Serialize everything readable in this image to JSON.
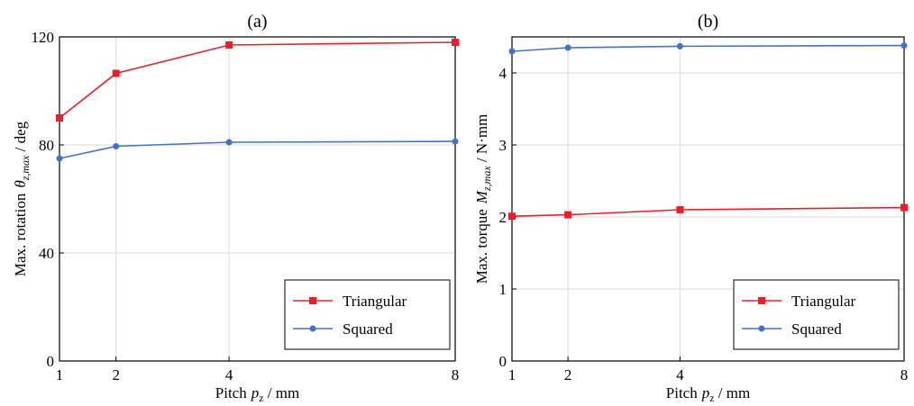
{
  "chart_data": [
    {
      "type": "line",
      "title": "(a)",
      "xlabel": "Pitch",
      "xlabel_var": "p",
      "xlabel_sub": "z",
      "xlabel_unit": " / mm",
      "ylabel": "Max. rotation",
      "ylabel_var": "θ",
      "ylabel_sub": "z,max",
      "ylabel_unit": " / deg",
      "xlim": [
        1,
        8
      ],
      "ylim": [
        0,
        120
      ],
      "xticks": [
        1,
        2,
        4,
        8
      ],
      "xtick_labels": [
        "1",
        "2",
        "4",
        "8"
      ],
      "yticks": [
        0,
        40,
        80,
        120
      ],
      "ytick_labels": [
        "0",
        "40",
        "80",
        "120"
      ],
      "grid": true,
      "legend_position": "bottom-right",
      "x": [
        1,
        2,
        4,
        8
      ],
      "series": [
        {
          "name": "Triangular",
          "values": [
            90,
            106.5,
            117,
            118
          ],
          "color": "#e8202a",
          "marker": "square"
        },
        {
          "name": "Squared",
          "values": [
            75,
            79.5,
            81,
            81.3
          ],
          "color": "#4472c4",
          "marker": "circle"
        }
      ]
    },
    {
      "type": "line",
      "title": "(b)",
      "xlabel": "Pitch",
      "xlabel_var": "p",
      "xlabel_sub": "z",
      "xlabel_unit": " / mm",
      "ylabel": "Max. torque",
      "ylabel_var": "M",
      "ylabel_sub": "z,max",
      "ylabel_unit": " / N·mm",
      "xlim": [
        1,
        8
      ],
      "ylim": [
        0,
        4.5
      ],
      "xticks": [
        1,
        2,
        4,
        8
      ],
      "xtick_labels": [
        "1",
        "2",
        "4",
        "8"
      ],
      "yticks": [
        0,
        1,
        2,
        3,
        4
      ],
      "ytick_labels": [
        "0",
        "1",
        "2",
        "3",
        "4"
      ],
      "grid": true,
      "legend_position": "bottom-right",
      "x": [
        1,
        2,
        4,
        8
      ],
      "series": [
        {
          "name": "Triangular",
          "values": [
            2.01,
            2.03,
            2.1,
            2.13
          ],
          "color": "#e8202a",
          "marker": "square"
        },
        {
          "name": "Squared",
          "values": [
            4.3,
            4.35,
            4.37,
            4.38
          ],
          "color": "#4472c4",
          "marker": "circle"
        }
      ]
    }
  ]
}
